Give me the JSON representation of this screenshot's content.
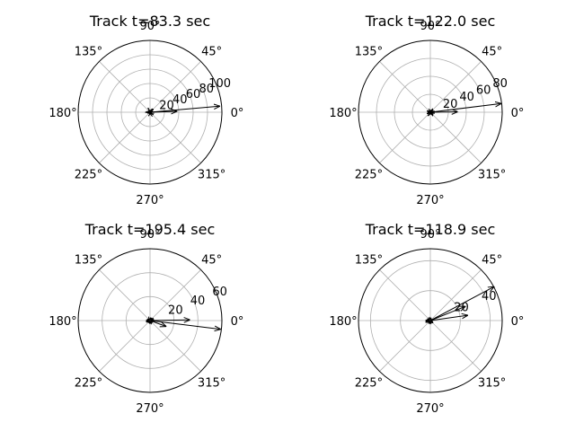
{
  "figure": {
    "background": "#ffffff",
    "grid_color": "#b0b0b0",
    "arrow_color": "#000000"
  },
  "chart_data": [
    {
      "type": "polar-quiver",
      "title": "Track t=83.3 sec",
      "rmax": 100,
      "rticks": [
        20,
        40,
        60,
        80,
        100
      ],
      "rtick_labels": [
        "20",
        "40",
        "60",
        "80",
        "100"
      ],
      "theta_ticks": [
        0,
        45,
        90,
        135,
        180,
        225,
        270,
        315
      ],
      "theta_tick_labels": [
        "0°",
        "45°",
        "90°",
        "135°",
        "180°",
        "225°",
        "270°",
        "315°"
      ],
      "vectors": [
        {
          "angle": 5,
          "length": 97
        },
        {
          "angle": 2,
          "length": 37
        },
        {
          "angle": 180,
          "length": 3
        },
        {
          "angle": 30,
          "length": 3
        },
        {
          "angle": 200,
          "length": 3
        },
        {
          "angle": 330,
          "length": 2
        },
        {
          "angle": 150,
          "length": 2
        },
        {
          "angle": 260,
          "length": 2
        }
      ]
    },
    {
      "type": "polar-quiver",
      "title": "Track t=122.0 sec",
      "rmax": 80,
      "rticks": [
        20,
        40,
        60,
        80
      ],
      "rtick_labels": [
        "20",
        "40",
        "60",
        "80"
      ],
      "theta_ticks": [
        0,
        45,
        90,
        135,
        180,
        225,
        270,
        315
      ],
      "theta_tick_labels": [
        "0°",
        "45°",
        "90°",
        "135°",
        "180°",
        "225°",
        "270°",
        "315°"
      ],
      "vectors": [
        {
          "angle": 7,
          "length": 79
        },
        {
          "angle": 1,
          "length": 30
        },
        {
          "angle": 180,
          "length": 3
        },
        {
          "angle": 20,
          "length": 3
        },
        {
          "angle": 200,
          "length": 2
        },
        {
          "angle": 340,
          "length": 3
        },
        {
          "angle": 160,
          "length": 2
        },
        {
          "angle": 90,
          "length": 2
        }
      ]
    },
    {
      "type": "polar-quiver",
      "title": "Track t=195.4 sec",
      "rmax": 60,
      "rticks": [
        20,
        40,
        60
      ],
      "rtick_labels": [
        "20",
        "40",
        "60"
      ],
      "theta_ticks": [
        0,
        45,
        90,
        135,
        180,
        225,
        270,
        315
      ],
      "theta_tick_labels": [
        "0°",
        "45°",
        "90°",
        "135°",
        "180°",
        "225°",
        "270°",
        "315°"
      ],
      "vectors": [
        {
          "angle": 353,
          "length": 59
        },
        {
          "angle": 1,
          "length": 33
        },
        {
          "angle": 340,
          "length": 14
        },
        {
          "angle": 180,
          "length": 3
        },
        {
          "angle": 30,
          "length": 3
        },
        {
          "angle": 200,
          "length": 3
        },
        {
          "angle": 150,
          "length": 2
        },
        {
          "angle": 250,
          "length": 2
        }
      ]
    },
    {
      "type": "polar-quiver",
      "title": "Track t=118.9 sec",
      "rmax": 48,
      "rticks": [
        20,
        40
      ],
      "rtick_labels": [
        "20",
        "40"
      ],
      "theta_ticks": [
        0,
        45,
        90,
        135,
        180,
        225,
        270,
        315
      ],
      "theta_tick_labels": [
        "0°",
        "45°",
        "90°",
        "135°",
        "180°",
        "225°",
        "270°",
        "315°"
      ],
      "vectors": [
        {
          "angle": 28,
          "length": 48
        },
        {
          "angle": 22,
          "length": 25
        },
        {
          "angle": 8,
          "length": 25
        },
        {
          "angle": 180,
          "length": 3
        },
        {
          "angle": 200,
          "length": 3
        },
        {
          "angle": 150,
          "length": 2
        },
        {
          "angle": 250,
          "length": 2
        },
        {
          "angle": 320,
          "length": 2
        }
      ]
    }
  ]
}
